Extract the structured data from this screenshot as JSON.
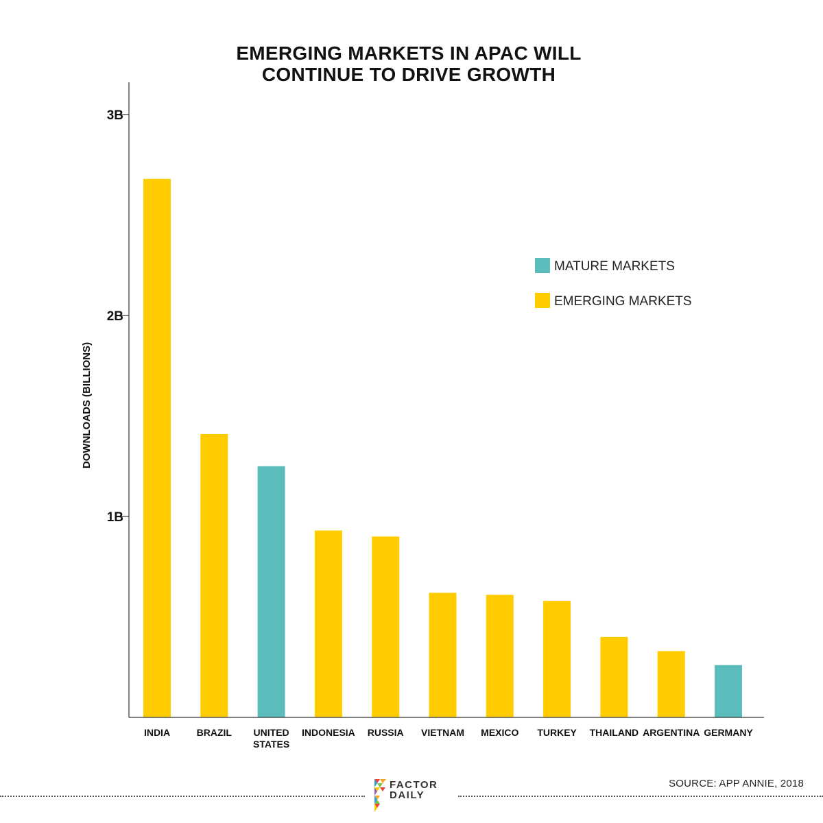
{
  "chart_data": {
    "type": "bar",
    "title_lines": [
      "EMERGING MARKETS IN APAC WILL",
      "CONTINUE TO DRIVE GROWTH"
    ],
    "ylabel": "DOWNLOADS (BILLIONS)",
    "xlabel": "",
    "ylim": [
      0,
      3.2
    ],
    "y_ticks": [
      {
        "value": 1,
        "label": "1B"
      },
      {
        "value": 2,
        "label": "2B"
      },
      {
        "value": 3,
        "label": "3B"
      }
    ],
    "categories": [
      [
        "INDIA"
      ],
      [
        "BRAZIL"
      ],
      [
        "UNITED",
        "STATES"
      ],
      [
        "INDONESIA"
      ],
      [
        "RUSSIA"
      ],
      [
        "VIETNAM"
      ],
      [
        "MEXICO"
      ],
      [
        "TURKEY"
      ],
      [
        "THAILAND"
      ],
      [
        "ARGENTINA"
      ],
      [
        "GERMANY"
      ]
    ],
    "values": [
      2.68,
      1.41,
      1.25,
      0.93,
      0.9,
      0.62,
      0.61,
      0.58,
      0.4,
      0.33,
      0.26
    ],
    "market_type": [
      "emerging",
      "emerging",
      "mature",
      "emerging",
      "emerging",
      "emerging",
      "emerging",
      "emerging",
      "emerging",
      "emerging",
      "mature"
    ],
    "legend": [
      {
        "key": "mature",
        "label": "MATURE MARKETS",
        "color": "#5bbcbc"
      },
      {
        "key": "emerging",
        "label": "EMERGING MARKETS",
        "color": "#ffcc00"
      }
    ],
    "legend_position": "upper-right",
    "grid": false
  },
  "footer": {
    "source": "SOURCE: APP ANNIE, 2018",
    "logo_lines": [
      "FACTOR",
      "DAILY"
    ]
  },
  "colors": {
    "axis": "#333333",
    "text": "#111111"
  }
}
